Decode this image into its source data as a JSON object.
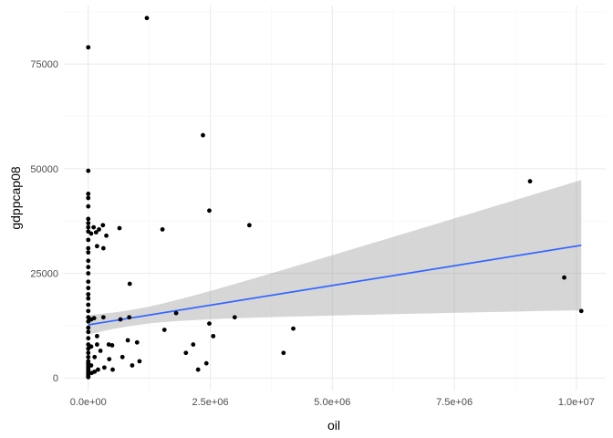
{
  "chart_data": {
    "type": "scatter",
    "xlabel": "oil",
    "ylabel": "gdppcap08",
    "xlim": [
      -500000,
      10600000
    ],
    "ylim": [
      -3000,
      89000
    ],
    "x_ticks": [
      0,
      2500000,
      5000000,
      7500000,
      10000000
    ],
    "x_tick_labels": [
      "0.0e+00",
      "2.5e+06",
      "5.0e+06",
      "7.5e+06",
      "1.0e+07"
    ],
    "y_ticks": [
      0,
      25000,
      50000,
      75000
    ],
    "y_tick_labels": [
      "0",
      "25000",
      "50000",
      "75000"
    ],
    "grid": true,
    "colors": {
      "points": "#000000",
      "fit_line": "#3366ff",
      "ribbon": "#999999",
      "grid_major": "#ebebeb",
      "grid_minor": "#f5f5f5"
    },
    "fit": {
      "method": "lm",
      "x": [
        0,
        10100000
      ],
      "y": [
        12700,
        31700
      ],
      "ci_lower": [
        10600,
        16200
      ],
      "ci_upper": [
        14800,
        47300
      ]
    },
    "points": [
      {
        "x": 0,
        "y": 79000
      },
      {
        "x": 0,
        "y": 49500
      },
      {
        "x": 0,
        "y": 44000
      },
      {
        "x": 0,
        "y": 43000
      },
      {
        "x": 0,
        "y": 41000
      },
      {
        "x": 0,
        "y": 38000
      },
      {
        "x": 0,
        "y": 37000
      },
      {
        "x": 0,
        "y": 36000
      },
      {
        "x": 0,
        "y": 35000
      },
      {
        "x": 0,
        "y": 33000
      },
      {
        "x": 0,
        "y": 31000
      },
      {
        "x": 0,
        "y": 30000
      },
      {
        "x": 0,
        "y": 28000
      },
      {
        "x": 0,
        "y": 26500
      },
      {
        "x": 0,
        "y": 25000
      },
      {
        "x": 0,
        "y": 23000
      },
      {
        "x": 0,
        "y": 21500
      },
      {
        "x": 0,
        "y": 20000
      },
      {
        "x": 0,
        "y": 19000
      },
      {
        "x": 0,
        "y": 17500
      },
      {
        "x": 0,
        "y": 16000
      },
      {
        "x": 0,
        "y": 14500
      },
      {
        "x": 0,
        "y": 13500
      },
      {
        "x": 0,
        "y": 12000
      },
      {
        "x": 0,
        "y": 11000
      },
      {
        "x": 0,
        "y": 9500
      },
      {
        "x": 0,
        "y": 8000
      },
      {
        "x": 0,
        "y": 7000
      },
      {
        "x": 0,
        "y": 6000
      },
      {
        "x": 0,
        "y": 5000
      },
      {
        "x": 0,
        "y": 4000
      },
      {
        "x": 0,
        "y": 3500
      },
      {
        "x": 0,
        "y": 3000
      },
      {
        "x": 0,
        "y": 2500
      },
      {
        "x": 0,
        "y": 2000
      },
      {
        "x": 0,
        "y": 1500
      },
      {
        "x": 0,
        "y": 1000
      },
      {
        "x": 0,
        "y": 700
      },
      {
        "x": 0,
        "y": 400
      },
      {
        "x": 0,
        "y": 200
      },
      {
        "x": 60000,
        "y": 34500
      },
      {
        "x": 60000,
        "y": 14000
      },
      {
        "x": 60000,
        "y": 7500
      },
      {
        "x": 60000,
        "y": 3000
      },
      {
        "x": 70000,
        "y": 1200
      },
      {
        "x": 110000,
        "y": 36000
      },
      {
        "x": 120000,
        "y": 14300
      },
      {
        "x": 130000,
        "y": 5000
      },
      {
        "x": 130000,
        "y": 1500
      },
      {
        "x": 160000,
        "y": 34800
      },
      {
        "x": 180000,
        "y": 31500
      },
      {
        "x": 180000,
        "y": 10000
      },
      {
        "x": 180000,
        "y": 8000
      },
      {
        "x": 200000,
        "y": 2000
      },
      {
        "x": 220000,
        "y": 35500
      },
      {
        "x": 250000,
        "y": 6500
      },
      {
        "x": 300000,
        "y": 36500
      },
      {
        "x": 310000,
        "y": 31000
      },
      {
        "x": 310000,
        "y": 14500
      },
      {
        "x": 330000,
        "y": 2500
      },
      {
        "x": 370000,
        "y": 34000
      },
      {
        "x": 420000,
        "y": 8000
      },
      {
        "x": 430000,
        "y": 4500
      },
      {
        "x": 490000,
        "y": 7800
      },
      {
        "x": 500000,
        "y": 2000
      },
      {
        "x": 640000,
        "y": 35800
      },
      {
        "x": 660000,
        "y": 14000
      },
      {
        "x": 700000,
        "y": 5000
      },
      {
        "x": 810000,
        "y": 9000
      },
      {
        "x": 840000,
        "y": 14500
      },
      {
        "x": 850000,
        "y": 22500
      },
      {
        "x": 900000,
        "y": 3000
      },
      {
        "x": 1000000,
        "y": 8500
      },
      {
        "x": 1050000,
        "y": 4000
      },
      {
        "x": 1200000,
        "y": 86000
      },
      {
        "x": 1520000,
        "y": 35500
      },
      {
        "x": 1560000,
        "y": 11500
      },
      {
        "x": 1800000,
        "y": 15500
      },
      {
        "x": 2000000,
        "y": 6000
      },
      {
        "x": 2150000,
        "y": 8000
      },
      {
        "x": 2250000,
        "y": 2000
      },
      {
        "x": 2350000,
        "y": 58000
      },
      {
        "x": 2420000,
        "y": 3500
      },
      {
        "x": 2480000,
        "y": 40000
      },
      {
        "x": 2480000,
        "y": 13000
      },
      {
        "x": 2560000,
        "y": 10000
      },
      {
        "x": 3000000,
        "y": 14500
      },
      {
        "x": 3300000,
        "y": 36500
      },
      {
        "x": 4000000,
        "y": 6000
      },
      {
        "x": 4200000,
        "y": 11800
      },
      {
        "x": 9050000,
        "y": 47000
      },
      {
        "x": 9750000,
        "y": 24000
      },
      {
        "x": 10100000,
        "y": 16000
      }
    ]
  }
}
